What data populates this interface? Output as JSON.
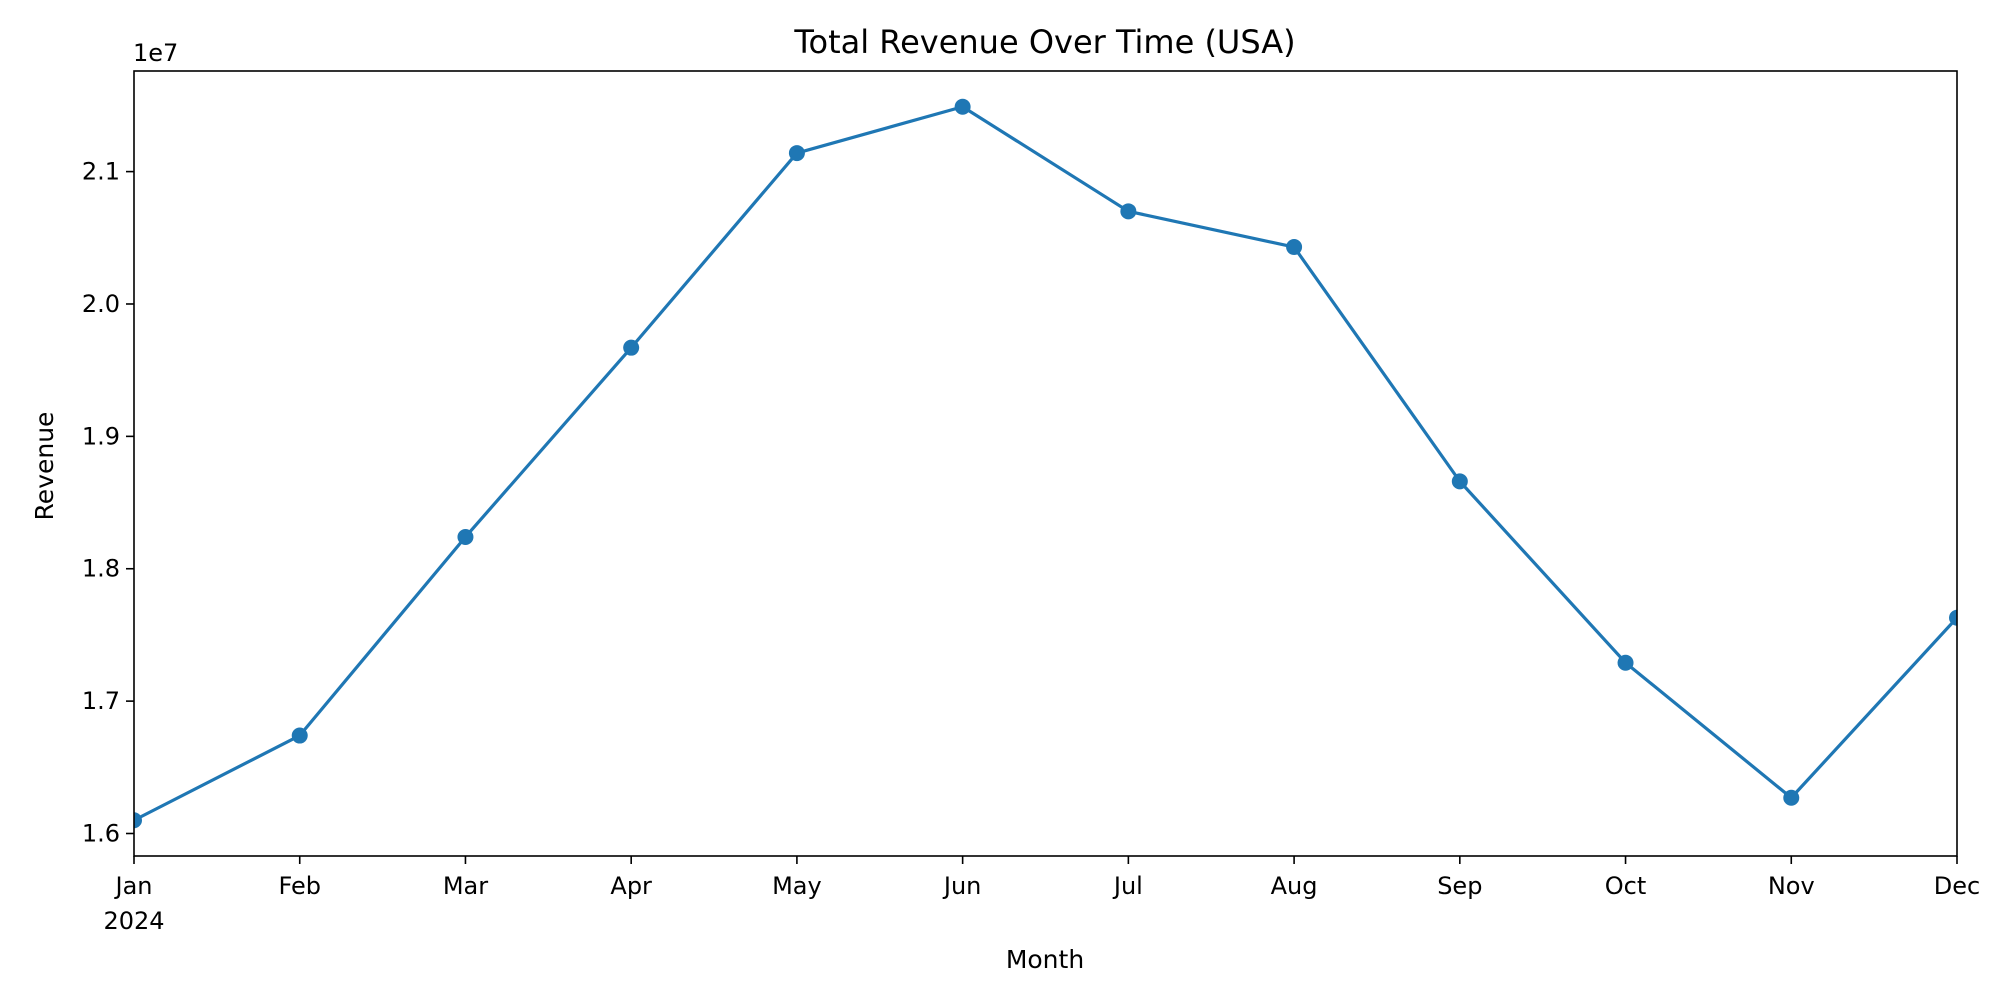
{
  "chart_data": {
    "type": "line",
    "title": "Total Revenue Over Time (USA)",
    "xlabel": "Month",
    "ylabel": "Revenue",
    "y_offset_label": "1e7",
    "x_year_label": "2024",
    "categories": [
      "Jan",
      "Feb",
      "Mar",
      "Apr",
      "May",
      "Jun",
      "Jul",
      "Aug",
      "Sep",
      "Oct",
      "Nov",
      "Dec"
    ],
    "series": [
      {
        "values": [
          16100000,
          16740000,
          18240000,
          19670000,
          21140000,
          21490000,
          20700000,
          20430000,
          18660000,
          17290000,
          16270000,
          17630000
        ],
        "color": "#1f77b4",
        "marker": "circle"
      }
    ],
    "ylim": [
      15830000,
      21760000
    ],
    "yticks": [
      16000000,
      17000000,
      18000000,
      19000000,
      20000000,
      21000000
    ],
    "ytick_labels": [
      "1.6",
      "1.7",
      "1.8",
      "1.9",
      "2.0",
      "2.1"
    ],
    "grid": false,
    "legend": "none"
  }
}
